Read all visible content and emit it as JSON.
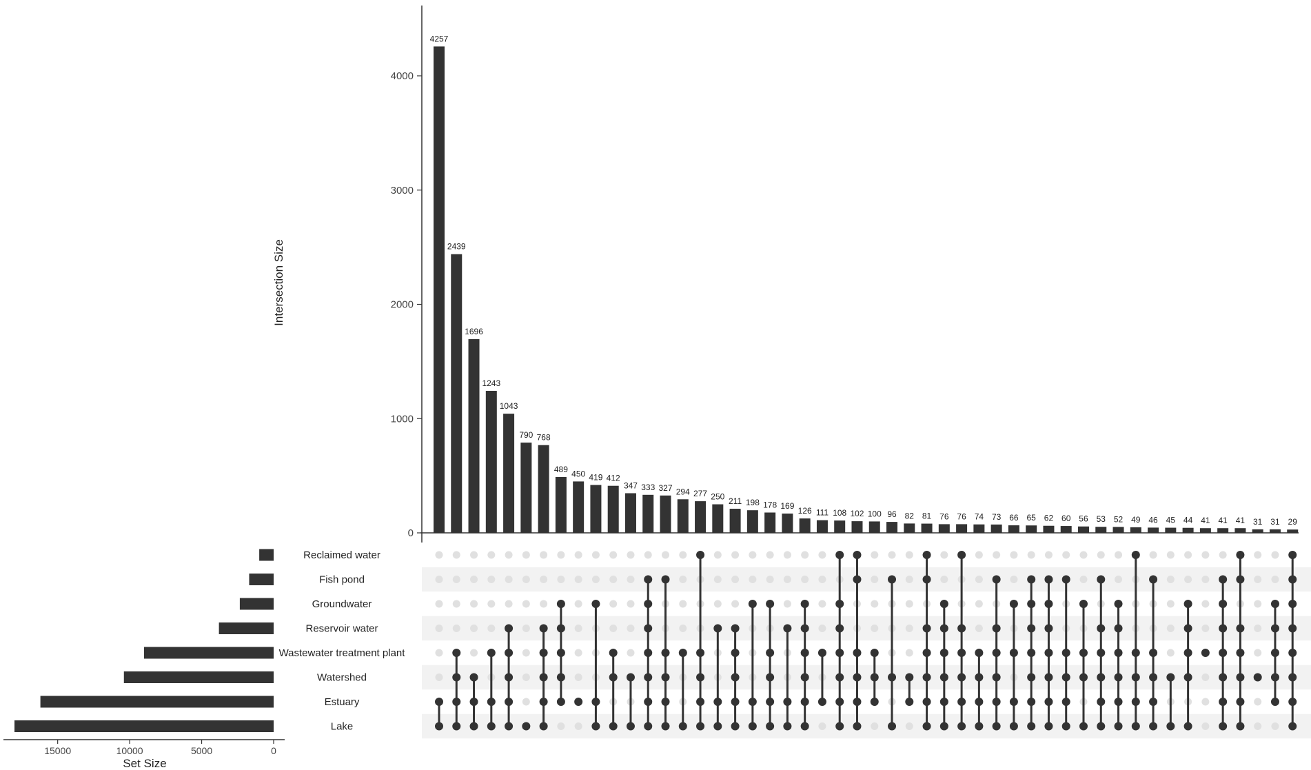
{
  "chart_data": {
    "type": "upset",
    "ylabel": "Intersection Size",
    "xlabel_sets": "Set Size",
    "ylim": [
      0,
      4500
    ],
    "yticks": [
      0,
      1000,
      2000,
      3000,
      4000
    ],
    "set_xticks": [
      15000,
      10000,
      5000,
      0
    ],
    "set_xlim": [
      0,
      18500
    ],
    "sets": [
      {
        "name": "Reclaimed water",
        "size": 1000
      },
      {
        "name": "Fish pond",
        "size": 1700
      },
      {
        "name": "Groundwater",
        "size": 2350
      },
      {
        "name": "Reservoir water",
        "size": 3800
      },
      {
        "name": "Wastewater treatment plant",
        "size": 9000
      },
      {
        "name": "Watershed",
        "size": 10400
      },
      {
        "name": "Estuary",
        "size": 16200
      },
      {
        "name": "Lake",
        "size": 18000
      }
    ],
    "intersections": [
      {
        "size": 4257,
        "members": [
          "Lake",
          "Estuary"
        ]
      },
      {
        "size": 2439,
        "members": [
          "Lake",
          "Estuary",
          "Watershed",
          "Wastewater treatment plant"
        ]
      },
      {
        "size": 1696,
        "members": [
          "Lake",
          "Estuary",
          "Watershed"
        ]
      },
      {
        "size": 1243,
        "members": [
          "Lake",
          "Estuary",
          "Wastewater treatment plant"
        ]
      },
      {
        "size": 1043,
        "members": [
          "Lake",
          "Estuary",
          "Watershed",
          "Wastewater treatment plant",
          "Reservoir water"
        ]
      },
      {
        "size": 790,
        "members": [
          "Lake"
        ]
      },
      {
        "size": 768,
        "members": [
          "Lake",
          "Estuary",
          "Watershed",
          "Wastewater treatment plant",
          "Reservoir water"
        ]
      },
      {
        "size": 489,
        "members": [
          "Estuary",
          "Watershed",
          "Wastewater treatment plant",
          "Reservoir water",
          "Groundwater"
        ]
      },
      {
        "size": 450,
        "members": [
          "Estuary"
        ]
      },
      {
        "size": 419,
        "members": [
          "Lake",
          "Estuary",
          "Groundwater"
        ]
      },
      {
        "size": 412,
        "members": [
          "Lake",
          "Watershed",
          "Wastewater treatment plant"
        ]
      },
      {
        "size": 347,
        "members": [
          "Lake",
          "Watershed"
        ]
      },
      {
        "size": 333,
        "members": [
          "Lake",
          "Estuary",
          "Watershed",
          "Wastewater treatment plant",
          "Reservoir water",
          "Groundwater",
          "Fish pond"
        ]
      },
      {
        "size": 327,
        "members": [
          "Lake",
          "Estuary",
          "Watershed",
          "Wastewater treatment plant",
          "Fish pond"
        ]
      },
      {
        "size": 294,
        "members": [
          "Lake",
          "Wastewater treatment plant"
        ]
      },
      {
        "size": 277,
        "members": [
          "Lake",
          "Estuary",
          "Watershed",
          "Wastewater treatment plant",
          "Reclaimed water"
        ]
      },
      {
        "size": 250,
        "members": [
          "Lake",
          "Estuary",
          "Reservoir water"
        ]
      },
      {
        "size": 211,
        "members": [
          "Lake",
          "Estuary",
          "Watershed",
          "Wastewater treatment plant",
          "Reservoir water"
        ]
      },
      {
        "size": 198,
        "members": [
          "Lake",
          "Estuary",
          "Groundwater"
        ]
      },
      {
        "size": 178,
        "members": [
          "Lake",
          "Estuary",
          "Watershed",
          "Wastewater treatment plant",
          "Groundwater"
        ]
      },
      {
        "size": 169,
        "members": [
          "Lake",
          "Estuary",
          "Reservoir water"
        ]
      },
      {
        "size": 126,
        "members": [
          "Lake",
          "Estuary",
          "Watershed",
          "Wastewater treatment plant",
          "Reservoir water",
          "Groundwater"
        ]
      },
      {
        "size": 111,
        "members": [
          "Estuary",
          "Wastewater treatment plant"
        ]
      },
      {
        "size": 108,
        "members": [
          "Lake",
          "Estuary",
          "Watershed",
          "Wastewater treatment plant",
          "Reservoir water",
          "Groundwater",
          "Reclaimed water"
        ]
      },
      {
        "size": 102,
        "members": [
          "Lake",
          "Estuary",
          "Watershed",
          "Wastewater treatment plant",
          "Fish pond",
          "Reclaimed water"
        ]
      },
      {
        "size": 100,
        "members": [
          "Estuary",
          "Watershed",
          "Wastewater treatment plant"
        ]
      },
      {
        "size": 96,
        "members": [
          "Lake",
          "Watershed",
          "Fish pond"
        ]
      },
      {
        "size": 82,
        "members": [
          "Estuary",
          "Watershed"
        ]
      },
      {
        "size": 81,
        "members": [
          "Lake",
          "Estuary",
          "Watershed",
          "Wastewater treatment plant",
          "Reservoir water",
          "Fish pond",
          "Reclaimed water"
        ]
      },
      {
        "size": 76,
        "members": [
          "Lake",
          "Estuary",
          "Watershed",
          "Wastewater treatment plant",
          "Reservoir water",
          "Groundwater"
        ]
      },
      {
        "size": 76,
        "members": [
          "Lake",
          "Estuary",
          "Watershed",
          "Wastewater treatment plant",
          "Reservoir water",
          "Reclaimed water"
        ]
      },
      {
        "size": 74,
        "members": [
          "Lake",
          "Estuary",
          "Watershed",
          "Wastewater treatment plant"
        ]
      },
      {
        "size": 73,
        "members": [
          "Lake",
          "Estuary",
          "Watershed",
          "Wastewater treatment plant",
          "Reservoir water",
          "Fish pond"
        ]
      },
      {
        "size": 66,
        "members": [
          "Lake",
          "Estuary",
          "Wastewater treatment plant",
          "Groundwater"
        ]
      },
      {
        "size": 65,
        "members": [
          "Lake",
          "Estuary",
          "Watershed",
          "Wastewater treatment plant",
          "Reservoir water",
          "Groundwater",
          "Fish pond"
        ]
      },
      {
        "size": 62,
        "members": [
          "Lake",
          "Estuary",
          "Watershed",
          "Wastewater treatment plant",
          "Reservoir water",
          "Groundwater",
          "Fish pond"
        ]
      },
      {
        "size": 60,
        "members": [
          "Lake",
          "Estuary",
          "Watershed",
          "Wastewater treatment plant",
          "Fish pond"
        ]
      },
      {
        "size": 56,
        "members": [
          "Lake",
          "Watershed",
          "Wastewater treatment plant",
          "Groundwater"
        ]
      },
      {
        "size": 53,
        "members": [
          "Lake",
          "Estuary",
          "Watershed",
          "Wastewater treatment plant",
          "Reservoir water",
          "Fish pond"
        ]
      },
      {
        "size": 52,
        "members": [
          "Lake",
          "Estuary",
          "Watershed",
          "Wastewater treatment plant",
          "Reservoir water",
          "Groundwater"
        ]
      },
      {
        "size": 49,
        "members": [
          "Lake",
          "Estuary",
          "Watershed",
          "Wastewater treatment plant",
          "Reclaimed water"
        ]
      },
      {
        "size": 46,
        "members": [
          "Lake",
          "Estuary",
          "Watershed",
          "Wastewater treatment plant",
          "Fish pond"
        ]
      },
      {
        "size": 45,
        "members": [
          "Lake",
          "Watershed"
        ]
      },
      {
        "size": 44,
        "members": [
          "Lake",
          "Watershed",
          "Wastewater treatment plant",
          "Reservoir water",
          "Groundwater"
        ]
      },
      {
        "size": 41,
        "members": [
          "Wastewater treatment plant"
        ]
      },
      {
        "size": 41,
        "members": [
          "Lake",
          "Estuary",
          "Watershed",
          "Wastewater treatment plant",
          "Reservoir water",
          "Groundwater",
          "Fish pond"
        ]
      },
      {
        "size": 41,
        "members": [
          "Lake",
          "Estuary",
          "Watershed",
          "Wastewater treatment plant",
          "Reservoir water",
          "Fish pond",
          "Reclaimed water"
        ]
      },
      {
        "size": 31,
        "members": [
          "Watershed"
        ]
      },
      {
        "size": 31,
        "members": [
          "Estuary",
          "Watershed",
          "Wastewater treatment plant",
          "Reservoir water",
          "Groundwater"
        ]
      },
      {
        "size": 29,
        "members": [
          "Lake",
          "Estuary",
          "Watershed",
          "Wastewater treatment plant",
          "Reservoir water",
          "Groundwater",
          "Fish pond",
          "Reclaimed water"
        ]
      }
    ],
    "colors": {
      "bar": "#333333",
      "dot_active": "#333333",
      "dot_inactive": "#e0e0e0",
      "stripe": "#f2f2f2",
      "axis": "#333333",
      "text": "#222222"
    }
  }
}
